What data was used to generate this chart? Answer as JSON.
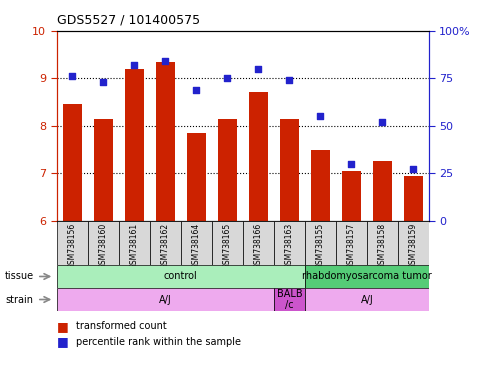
{
  "title": "GDS5527 / 101400575",
  "samples": [
    "GSM738156",
    "GSM738160",
    "GSM738161",
    "GSM738162",
    "GSM738164",
    "GSM738165",
    "GSM738166",
    "GSM738163",
    "GSM738155",
    "GSM738157",
    "GSM738158",
    "GSM738159"
  ],
  "bar_values": [
    8.45,
    8.15,
    9.2,
    9.35,
    7.85,
    8.15,
    8.7,
    8.15,
    7.5,
    7.05,
    7.25,
    6.95
  ],
  "dot_values": [
    76,
    73,
    82,
    84,
    69,
    75,
    80,
    74,
    55,
    30,
    52,
    27
  ],
  "ylim_left": [
    6,
    10
  ],
  "yticks_left": [
    6,
    7,
    8,
    9,
    10
  ],
  "yticks_right": [
    0,
    25,
    50,
    75,
    100
  ],
  "bar_color": "#cc2200",
  "dot_color": "#2222cc",
  "tissue_groups": [
    {
      "label": "control",
      "start": 0,
      "end": 8,
      "color": "#aaeebb"
    },
    {
      "label": "rhabdomyosarcoma tumor",
      "start": 8,
      "end": 12,
      "color": "#55cc77"
    }
  ],
  "strain_groups": [
    {
      "label": "A/J",
      "start": 0,
      "end": 7,
      "color": "#eeaaee"
    },
    {
      "label": "BALB\n/c",
      "start": 7,
      "end": 8,
      "color": "#cc55cc"
    },
    {
      "label": "A/J",
      "start": 8,
      "end": 12,
      "color": "#eeaaee"
    }
  ],
  "legend_bar_label": "transformed count",
  "legend_dot_label": "percentile rank within the sample"
}
